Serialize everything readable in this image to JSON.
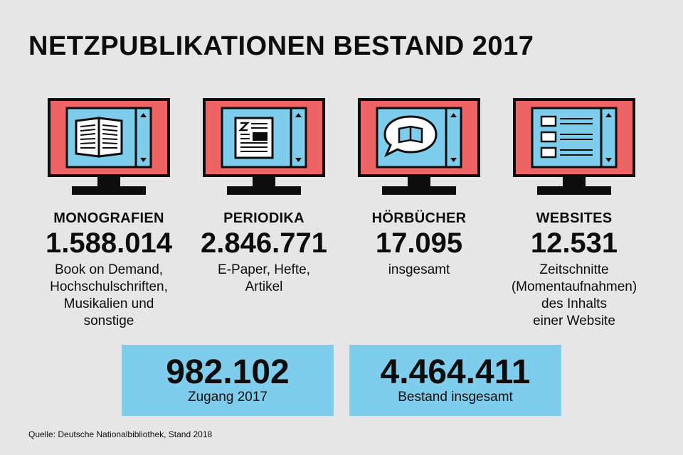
{
  "title": "NETZPUBLIKATIONEN BESTAND 2017",
  "categories": [
    {
      "label": "MONOGRAFIEN",
      "value": "1.588.014",
      "description": "Book on Demand,\nHochschulschriften,\nMusikalien und\nsonstige",
      "icon": "open-book-icon"
    },
    {
      "label": "PERIODIKA",
      "value": "2.846.771",
      "description": "E-Paper, Hefte,\nArtikel",
      "icon": "newspaper-icon"
    },
    {
      "label": "HÖRBÜCHER",
      "value": "17.095",
      "description": "insgesamt",
      "icon": "speech-bubble-book-icon"
    },
    {
      "label": "WEBSITES",
      "value": "12.531",
      "description": "Zeitschnitte\n(Momentaufnahmen)\ndes Inhalts\neiner Website",
      "icon": "website-layout-icon"
    }
  ],
  "totals": [
    {
      "value": "982.102",
      "label": "Zugang 2017"
    },
    {
      "value": "4.464.411",
      "label": "Bestand insgesamt"
    }
  ],
  "source": "Quelle: Deutsche Nationalbibliothek, Stand 2018",
  "colors": {
    "background": "#e6e6e6",
    "monitor": "#ee6464",
    "screen": "#7ecdec",
    "ink": "#0d0d0d"
  }
}
